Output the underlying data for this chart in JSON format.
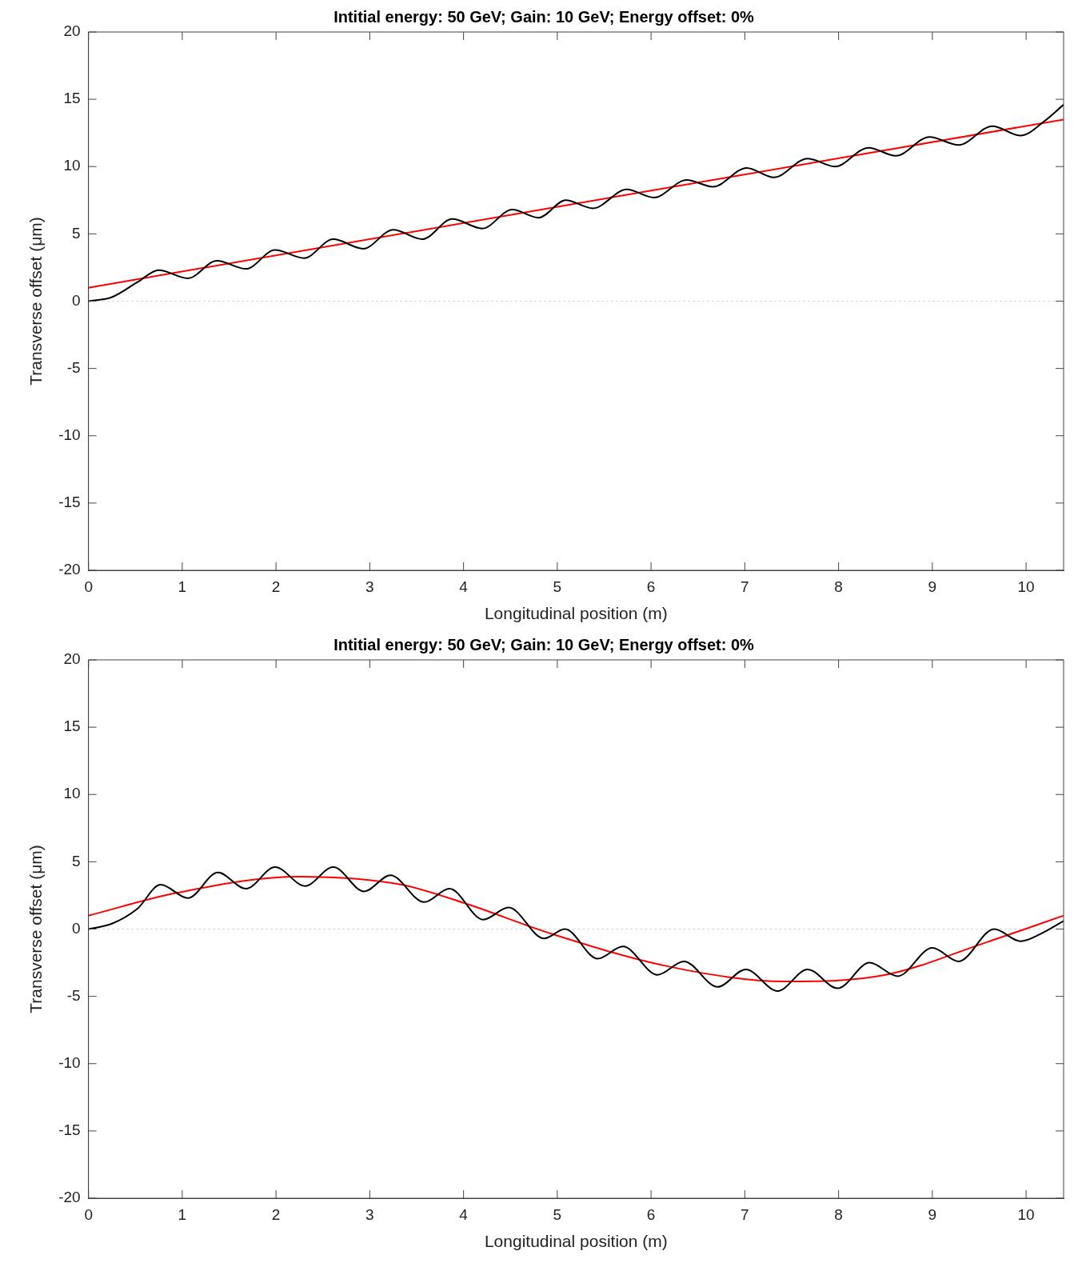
{
  "chart_data": [
    {
      "type": "line",
      "title": "Intitial energy: 50 GeV; Gain: 10 GeV; Energy offset: 0%",
      "xlabel": "Longitudinal position (m)",
      "ylabel": "Transverse offset (μm)",
      "xlim": [
        0,
        10.4
      ],
      "ylim": [
        -20,
        20
      ],
      "xticks": [
        0,
        1,
        2,
        3,
        4,
        5,
        6,
        7,
        8,
        9,
        10
      ],
      "yticks": [
        -20,
        -15,
        -10,
        -5,
        0,
        5,
        10,
        15,
        20
      ],
      "grid": false,
      "legend": false,
      "marker": "none",
      "line_style": "solid",
      "ref_lines": [
        {
          "axis": "y",
          "value": 0,
          "color": "#c8c8c8",
          "line_style": "dotted"
        }
      ],
      "series": [
        {
          "color": "#000000",
          "x": [
            0,
            0.25,
            0.52,
            0.75,
            1.06,
            1.37,
            1.68,
            1.99,
            2.3,
            2.61,
            2.93,
            3.25,
            3.56,
            3.88,
            4.2,
            4.52,
            4.8,
            5.09,
            5.38,
            5.74,
            6.03,
            6.38,
            6.66,
            7.02,
            7.31,
            7.67,
            7.96,
            8.32,
            8.61,
            8.97,
            9.28,
            9.64,
            9.94,
            10.2,
            10.4
          ],
          "values": [
            0,
            0.3,
            1.4,
            2.3,
            1.7,
            3.0,
            2.4,
            3.8,
            3.2,
            4.6,
            3.9,
            5.3,
            4.6,
            6.1,
            5.4,
            6.8,
            6.2,
            7.5,
            6.9,
            8.3,
            7.7,
            9.0,
            8.5,
            9.9,
            9.2,
            10.6,
            10.0,
            11.4,
            10.8,
            12.2,
            11.6,
            13.0,
            12.3,
            13.4,
            14.6
          ]
        },
        {
          "color": "#ff0000",
          "x": [
            0,
            10.4
          ],
          "values": [
            1.0,
            13.5
          ]
        }
      ]
    },
    {
      "type": "line",
      "title": "Intitial energy: 50 GeV; Gain: 10 GeV; Energy offset: 0%",
      "xlabel": "Longitudinal position (m)",
      "ylabel": "Transverse offset (μm)",
      "xlim": [
        0,
        10.4
      ],
      "ylim": [
        -20,
        20
      ],
      "xticks": [
        0,
        1,
        2,
        3,
        4,
        5,
        6,
        7,
        8,
        9,
        10
      ],
      "yticks": [
        -20,
        -15,
        -10,
        -5,
        0,
        5,
        10,
        15,
        20
      ],
      "grid": false,
      "legend": false,
      "marker": "none",
      "line_style": "solid",
      "ref_lines": [
        {
          "axis": "y",
          "value": 0,
          "color": "#c8c8c8",
          "line_style": "dotted"
        }
      ],
      "series": [
        {
          "color": "#000000",
          "x": [
            0,
            0.25,
            0.52,
            0.77,
            1.06,
            1.38,
            1.68,
            1.99,
            2.31,
            2.61,
            2.94,
            3.22,
            3.58,
            3.85,
            4.21,
            4.48,
            4.86,
            5.08,
            5.43,
            5.7,
            6.07,
            6.35,
            6.71,
            7.01,
            7.35,
            7.67,
            7.99,
            8.33,
            8.63,
            9.0,
            9.28,
            9.66,
            9.94,
            10.17,
            10.4
          ],
          "values": [
            0,
            0.4,
            1.5,
            3.3,
            2.3,
            4.2,
            3.0,
            4.6,
            3.2,
            4.6,
            2.8,
            4.0,
            2.0,
            3.0,
            0.7,
            1.6,
            -0.7,
            0.0,
            -2.2,
            -1.3,
            -3.4,
            -2.4,
            -4.3,
            -3.0,
            -4.6,
            -3.0,
            -4.4,
            -2.5,
            -3.5,
            -1.4,
            -2.4,
            0.0,
            -0.9,
            -0.3,
            0.6
          ]
        },
        {
          "color": "#ff0000",
          "x": [
            0,
            0.95,
            2.25,
            3.34,
            4.02,
            4.96,
            6.2,
            7.44,
            8.5,
            9.57,
            10.4
          ],
          "values": [
            1.0,
            2.7,
            3.9,
            3.3,
            1.9,
            -0.4,
            -2.8,
            -3.9,
            -3.4,
            -1.0,
            1.0
          ]
        }
      ]
    }
  ]
}
